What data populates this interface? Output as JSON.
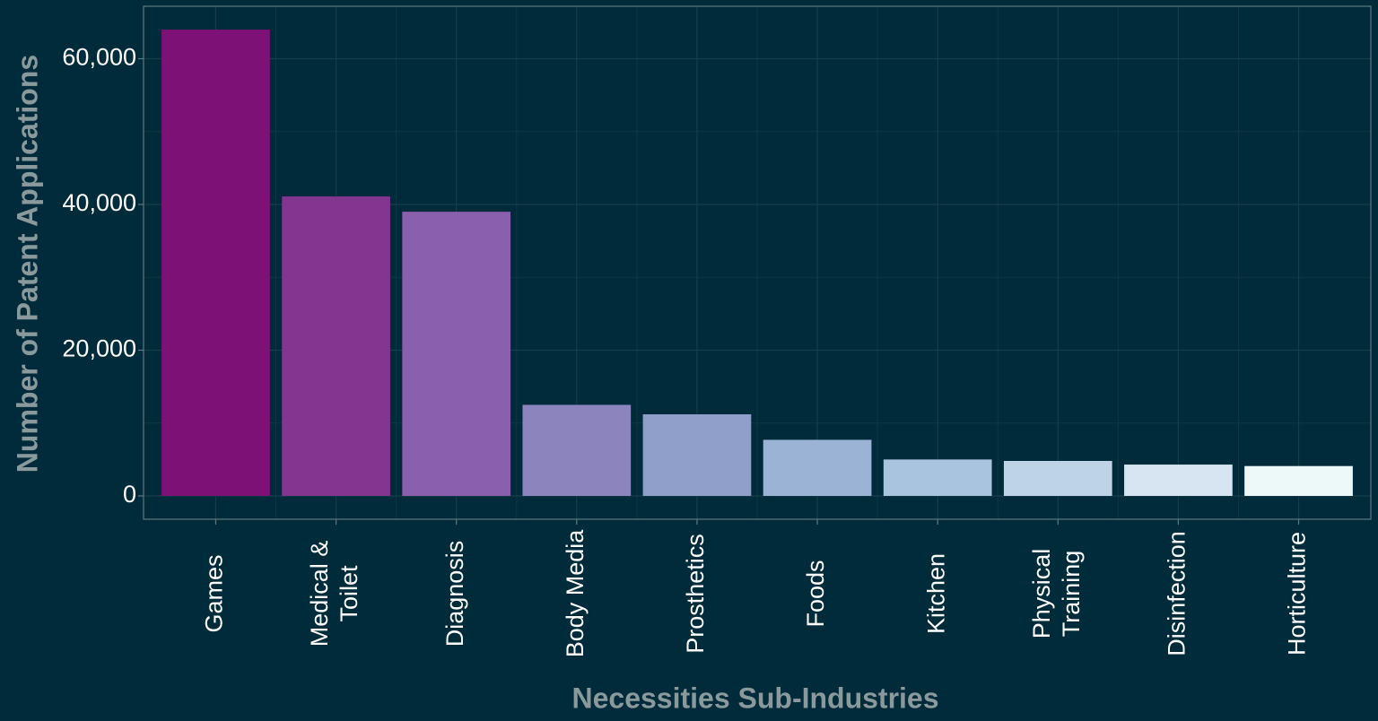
{
  "chart_data": {
    "type": "bar",
    "title": "",
    "xlabel": "Necessities Sub-Industries",
    "ylabel": "Number of Patent Applications",
    "categories": [
      [
        "Games"
      ],
      [
        "Medical &",
        "Toilet"
      ],
      [
        "Diagnosis"
      ],
      [
        "Body Media"
      ],
      [
        "Prosthetics"
      ],
      [
        "Foods"
      ],
      [
        "Kitchen"
      ],
      [
        "Physical",
        "Training"
      ],
      [
        "Disinfection"
      ],
      [
        "Horticulture"
      ]
    ],
    "values": [
      64000,
      41100,
      39000,
      12500,
      11200,
      7700,
      5000,
      4800,
      4300,
      4100
    ],
    "bar_colors": [
      "#7e1176",
      "#82368f",
      "#8a5fae",
      "#8b84bd",
      "#8f9fc9",
      "#9bb4d6",
      "#a9c4df",
      "#bfd3e7",
      "#d6e5f1",
      "#edf8f8"
    ],
    "ylim": [
      -3200,
      67200
    ],
    "yticks": [
      0,
      20000,
      40000,
      60000
    ],
    "ytick_labels": [
      "0",
      "20,000",
      "40,000",
      "60,000"
    ],
    "grid": true,
    "legend": "none",
    "colors": {
      "background": "#002b3a",
      "panel": "#002b3a",
      "panel_border": "#5d7a80",
      "grid_major": "#163e4a",
      "grid_minor": "#0f3644",
      "tick_text": "#ffffff",
      "axis_title_text": "#8a9a9c"
    }
  }
}
